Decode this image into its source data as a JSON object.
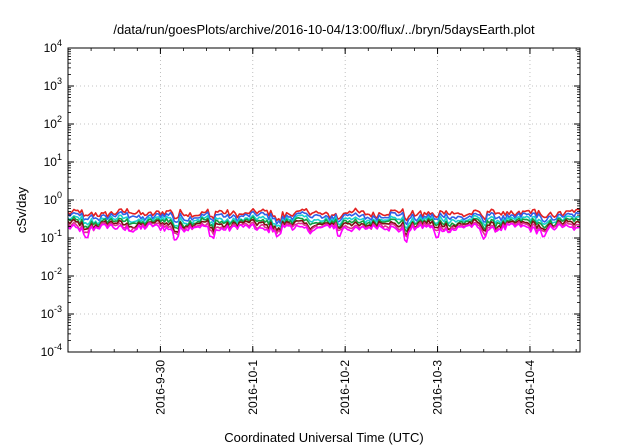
{
  "chart_data": {
    "type": "line",
    "title": "/data/run/goesPlots/archive/2016-10-04/13:00/flux/../bryn/5daysEarth.plot",
    "xlabel": "Coordinated Universal Time (UTC)",
    "ylabel": "cSv/day",
    "yscale": "log",
    "ylim": [
      0.0001,
      10000
    ],
    "y_ticks": [
      {
        "value": 0.0001,
        "base": "10",
        "exp": "-4"
      },
      {
        "value": 0.001,
        "base": "10",
        "exp": "-3"
      },
      {
        "value": 0.01,
        "base": "10",
        "exp": "-2"
      },
      {
        "value": 0.1,
        "base": "10",
        "exp": "-1"
      },
      {
        "value": 1,
        "base": "10",
        "exp": "0"
      },
      {
        "value": 10,
        "base": "10",
        "exp": "1"
      },
      {
        "value": 100,
        "base": "10",
        "exp": "2"
      },
      {
        "value": 1000,
        "base": "10",
        "exp": "3"
      },
      {
        "value": 10000,
        "base": "10",
        "exp": "4"
      }
    ],
    "xlim": [
      "2016-09-29T00:00",
      "2016-10-04T13:00"
    ],
    "x_ticks": [
      {
        "value": "2016-09-30T00:00",
        "label": "2016-9-30"
      },
      {
        "value": "2016-10-01T00:00",
        "label": "2016-10-1"
      },
      {
        "value": "2016-10-02T00:00",
        "label": "2016-10-2"
      },
      {
        "value": "2016-10-03T00:00",
        "label": "2016-10-3"
      },
      {
        "value": "2016-10-04T00:00",
        "label": "2016-10-4"
      }
    ],
    "grid": true,
    "series": [
      {
        "color": "#e32020",
        "base": 0.46
      },
      {
        "color": "#3060e8",
        "base": 0.38
      },
      {
        "color": "#18d0d0",
        "base": 0.31
      },
      {
        "color": "#12a040",
        "base": 0.27
      },
      {
        "color": "#7a1010",
        "base": 0.235
      },
      {
        "color": "#e03090",
        "base": 0.205
      },
      {
        "color": "#ff00ff",
        "base": 0.185
      }
    ]
  }
}
